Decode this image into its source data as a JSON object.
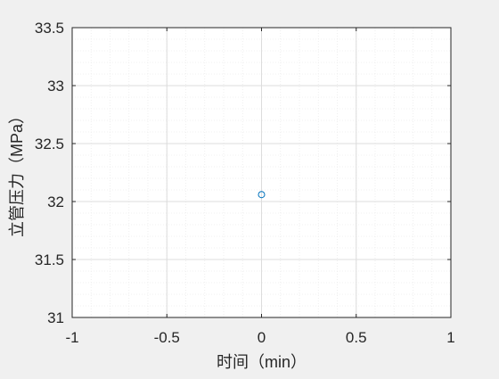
{
  "chart_data": {
    "type": "scatter",
    "title": "",
    "xlabel": "时间（min）",
    "ylabel": "立管压力（MPa）",
    "xlim": [
      -1,
      1
    ],
    "ylim": [
      31,
      33.5
    ],
    "xticks": [
      -1,
      -0.5,
      0,
      0.5,
      1
    ],
    "xtick_labels": [
      "-1",
      "-0.5",
      "0",
      "0.5",
      "1"
    ],
    "yticks": [
      31,
      31.5,
      32,
      32.5,
      33,
      33.5
    ],
    "ytick_labels": [
      "31",
      "31.5",
      "32",
      "32.5",
      "33",
      "33.5"
    ],
    "grid": true,
    "minor_grid": true,
    "series": [
      {
        "x": [
          0
        ],
        "y": [
          32.06
        ],
        "marker": "circle-open",
        "color": "#0072bd"
      }
    ]
  },
  "colors": {
    "figure_background": "#f0f0f0",
    "axes_background": "#ffffff",
    "axis_line": "#262626",
    "major_grid": "#dcdcdc",
    "minor_grid": "#ececec",
    "marker": "#0072bd"
  }
}
